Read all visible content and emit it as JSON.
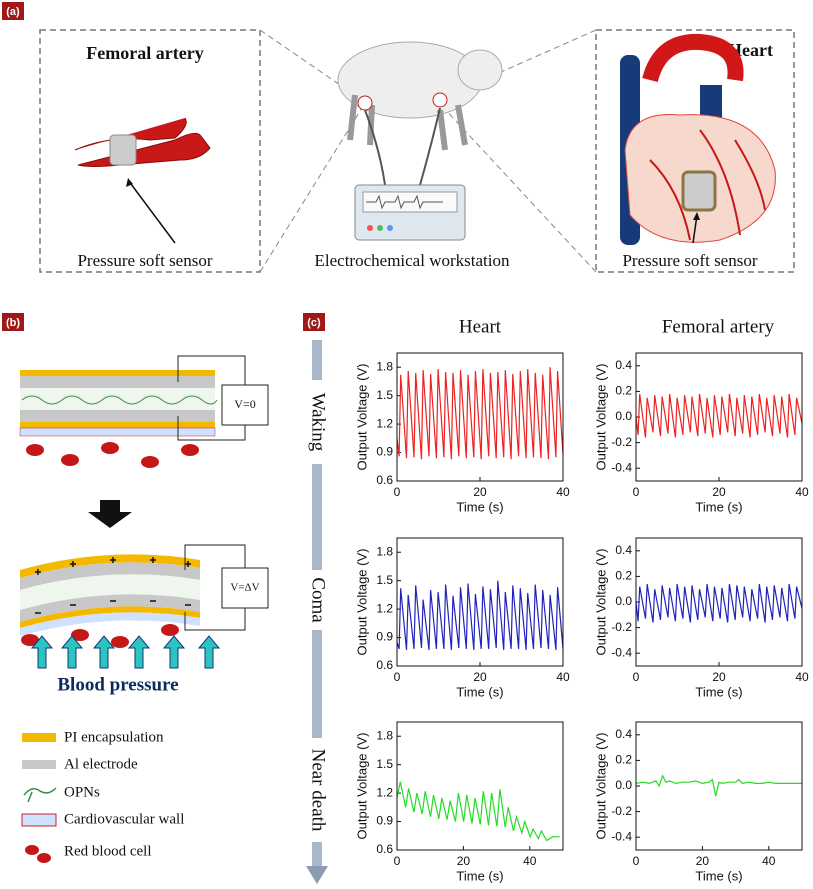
{
  "panel_labels": [
    "(a)",
    "(b)",
    "(c)"
  ],
  "panel_a": {
    "femoral_title": "Femoral artery",
    "heart_title": "Heart",
    "sensor_left": "Pressure soft sensor",
    "workstation": "Electrochemical workstation",
    "sensor_right": "Pressure soft sensor"
  },
  "panel_b": {
    "v_zero": "V=0",
    "v_delta": "V=ΔV",
    "blood_pressure": "Blood pressure",
    "legend": [
      "PI encapsulation",
      "Al electrode",
      "OPNs",
      "Cardiovascular wall",
      "Red blood cell"
    ]
  },
  "panel_c": {
    "columns": [
      "Heart",
      "Femoral artery"
    ],
    "stages": [
      "Waking",
      "Coma",
      "Near death"
    ]
  },
  "chart_data": [
    {
      "type": "line",
      "color": "#ee2222",
      "xlabel": "Time (s)",
      "ylabel": "Output Voltage (V)",
      "xlim": [
        0,
        40
      ],
      "ylim": [
        0.6,
        1.95
      ],
      "xticks": [
        0,
        20,
        40
      ],
      "yticks": [
        0.6,
        0.9,
        1.2,
        1.5,
        1.8
      ],
      "x": [
        0,
        0.5,
        0.9,
        2.3,
        2.7,
        4.1,
        4.5,
        5.9,
        6.3,
        7.7,
        8.1,
        9.5,
        9.9,
        11.3,
        11.7,
        13.1,
        13.5,
        14.9,
        15.3,
        16.7,
        17.1,
        18.5,
        18.9,
        20.3,
        20.7,
        22.1,
        22.5,
        23.9,
        24.3,
        25.7,
        26.1,
        27.5,
        27.9,
        29.3,
        29.7,
        31.1,
        31.5,
        32.9,
        33.3,
        34.7,
        35.1,
        36.5,
        36.9,
        38.3,
        38.7,
        40
      ],
      "values": [
        1.05,
        0.86,
        1.72,
        0.84,
        1.76,
        0.85,
        1.74,
        0.83,
        1.77,
        0.86,
        1.73,
        0.84,
        1.78,
        0.85,
        1.75,
        0.83,
        1.74,
        0.86,
        1.77,
        0.84,
        1.72,
        0.85,
        1.76,
        0.83,
        1.78,
        0.86,
        1.74,
        0.84,
        1.75,
        0.85,
        1.77,
        0.83,
        1.73,
        0.86,
        1.76,
        0.84,
        1.78,
        0.85,
        1.74,
        0.84,
        1.72,
        0.83,
        1.8,
        0.85,
        1.76,
        0.88
      ]
    },
    {
      "type": "line",
      "color": "#ee2222",
      "xlabel": "Time (s)",
      "ylabel": "Output Voltage (V)",
      "xlim": [
        0,
        40
      ],
      "ylim": [
        -0.5,
        0.5
      ],
      "xticks": [
        0,
        20,
        40
      ],
      "yticks": [
        -0.4,
        -0.2,
        {
          "value": 0,
          "label": "0.0"
        },
        0.2,
        0.4
      ],
      "x": [
        0,
        0.5,
        0.9,
        2.3,
        2.7,
        4.1,
        4.5,
        5.9,
        6.3,
        7.7,
        8.1,
        9.5,
        9.9,
        11.3,
        11.7,
        13.1,
        13.5,
        14.9,
        15.3,
        16.7,
        17.1,
        18.5,
        18.9,
        20.3,
        20.7,
        22.1,
        22.5,
        23.9,
        24.3,
        25.7,
        26.1,
        27.5,
        27.9,
        29.3,
        29.7,
        31.1,
        31.5,
        32.9,
        33.3,
        34.7,
        35.1,
        36.5,
        36.9,
        38.3,
        38.7,
        40
      ],
      "values": [
        0,
        -0.14,
        0.18,
        -0.16,
        0.15,
        -0.12,
        0.17,
        -0.15,
        0.16,
        -0.13,
        0.18,
        -0.16,
        0.15,
        -0.14,
        0.17,
        -0.12,
        0.16,
        -0.15,
        0.18,
        -0.13,
        0.15,
        -0.16,
        0.17,
        -0.14,
        0.16,
        -0.12,
        0.18,
        -0.15,
        0.15,
        -0.13,
        0.17,
        -0.16,
        0.16,
        -0.14,
        0.18,
        -0.12,
        0.15,
        -0.15,
        0.17,
        -0.13,
        0.16,
        -0.16,
        0.18,
        -0.14,
        0.15,
        -0.05
      ]
    },
    {
      "type": "line",
      "color": "#2222bb",
      "xlabel": "Time (s)",
      "ylabel": "Output Voltage (V)",
      "xlim": [
        0,
        40
      ],
      "ylim": [
        0.6,
        1.95
      ],
      "xticks": [
        0,
        20,
        40
      ],
      "yticks": [
        0.6,
        0.9,
        1.2,
        1.5,
        1.8
      ],
      "x": [
        0,
        0.5,
        0.9,
        2.3,
        2.7,
        4.1,
        4.5,
        5.9,
        6.3,
        7.7,
        8.1,
        9.5,
        9.9,
        11.3,
        11.7,
        13.1,
        13.5,
        14.9,
        15.3,
        16.7,
        17.1,
        18.5,
        18.9,
        20.3,
        20.7,
        22.1,
        22.5,
        23.9,
        24.3,
        25.7,
        26.1,
        27.5,
        27.9,
        29.3,
        29.7,
        31.1,
        31.5,
        32.9,
        33.3,
        34.7,
        35.1,
        36.5,
        36.9,
        38.3,
        38.7,
        40
      ],
      "values": [
        0.85,
        0.78,
        1.42,
        0.77,
        1.35,
        0.78,
        1.45,
        0.79,
        1.3,
        0.77,
        1.4,
        0.78,
        1.38,
        0.78,
        1.46,
        0.77,
        1.34,
        0.79,
        1.43,
        0.78,
        1.47,
        0.77,
        1.36,
        0.78,
        1.44,
        0.78,
        1.41,
        0.79,
        1.5,
        0.77,
        1.38,
        0.78,
        1.45,
        0.78,
        1.42,
        0.77,
        1.37,
        0.78,
        1.46,
        0.79,
        1.4,
        0.78,
        1.35,
        0.77,
        1.43,
        0.78
      ]
    },
    {
      "type": "line",
      "color": "#2222bb",
      "xlabel": "Time (s)",
      "ylabel": "Output Voltage (V)",
      "xlim": [
        0,
        40
      ],
      "ylim": [
        -0.5,
        0.5
      ],
      "xticks": [
        0,
        20,
        40
      ],
      "yticks": [
        -0.4,
        -0.2,
        {
          "value": 0,
          "label": "0.0"
        },
        0.2,
        0.4
      ],
      "x": [
        0,
        0.5,
        0.9,
        2.3,
        2.7,
        4.1,
        4.5,
        5.9,
        6.3,
        7.7,
        8.1,
        9.5,
        9.9,
        11.3,
        11.7,
        13.1,
        13.5,
        14.9,
        15.3,
        16.7,
        17.1,
        18.5,
        18.9,
        20.3,
        20.7,
        22.1,
        22.5,
        23.9,
        24.3,
        25.7,
        26.1,
        27.5,
        27.9,
        29.3,
        29.7,
        31.1,
        31.5,
        32.9,
        33.3,
        34.7,
        35.1,
        36.5,
        36.9,
        38.3,
        38.7,
        40
      ],
      "values": [
        0,
        -0.15,
        0.12,
        -0.13,
        0.14,
        -0.16,
        0.1,
        -0.14,
        0.13,
        -0.12,
        0.11,
        -0.15,
        0.14,
        -0.13,
        0.12,
        -0.16,
        0.13,
        -0.14,
        0.1,
        -0.12,
        0.14,
        -0.15,
        0.12,
        -0.13,
        0.11,
        -0.16,
        0.14,
        -0.14,
        0.13,
        -0.12,
        0.12,
        -0.15,
        0.1,
        -0.13,
        0.14,
        -0.16,
        0.12,
        -0.14,
        0.13,
        -0.12,
        0.11,
        -0.15,
        0.14,
        -0.13,
        0.12,
        -0.05
      ]
    },
    {
      "type": "line",
      "color": "#22dd22",
      "xlabel": "Time (s)",
      "ylabel": "Output Voltage (V)",
      "xlim": [
        0,
        50
      ],
      "ylim": [
        0.6,
        1.95
      ],
      "xticks": [
        0,
        20,
        40
      ],
      "yticks": [
        0.6,
        0.9,
        1.2,
        1.5,
        1.8
      ],
      "x": [
        0,
        1.0,
        2.6,
        3.5,
        5.1,
        6.0,
        7.6,
        8.5,
        10.1,
        11.0,
        12.6,
        13.5,
        15.1,
        16.0,
        17.6,
        18.5,
        20.1,
        21.0,
        22.6,
        23.5,
        25.1,
        26.0,
        27.6,
        28.5,
        30.1,
        31.0,
        32.6,
        33.5,
        35.1,
        36.0,
        37.6,
        38.5,
        40.1,
        41.0,
        42.6,
        43.5,
        45.1,
        47,
        49
      ],
      "values": [
        1.15,
        1.32,
        1.05,
        1.25,
        1.0,
        1.2,
        0.98,
        1.22,
        0.95,
        1.18,
        0.93,
        1.15,
        0.92,
        1.12,
        0.9,
        1.2,
        0.9,
        1.18,
        0.88,
        1.15,
        0.87,
        1.22,
        0.86,
        1.2,
        0.85,
        1.24,
        0.84,
        1.05,
        0.8,
        0.95,
        0.78,
        0.9,
        0.74,
        0.82,
        0.72,
        0.8,
        0.7,
        0.74,
        0.74
      ]
    },
    {
      "type": "line",
      "color": "#22dd22",
      "xlabel": "Time (s)",
      "ylabel": "Output Voltage (V)",
      "xlim": [
        0,
        50
      ],
      "ylim": [
        -0.5,
        0.5
      ],
      "xticks": [
        0,
        20,
        40
      ],
      "yticks": [
        -0.4,
        -0.2,
        {
          "value": 0,
          "label": "0.0"
        },
        0.2,
        0.4
      ],
      "x": [
        0,
        2,
        4,
        6,
        7,
        8,
        9,
        10,
        12,
        14,
        16,
        18,
        20,
        22,
        23,
        24,
        25,
        26,
        28,
        30,
        31,
        32,
        34,
        36,
        38,
        40,
        42,
        44,
        46,
        48,
        50
      ],
      "values": [
        0.02,
        0.03,
        0.02,
        0.04,
        0,
        0.08,
        0.03,
        0.04,
        0.02,
        0.03,
        0.03,
        0.04,
        0.02,
        0.03,
        0.05,
        -0.08,
        0.03,
        0.02,
        0.03,
        0.03,
        0.05,
        0.02,
        0.03,
        0.02,
        0.02,
        0.03,
        0.02,
        0.02,
        0.02,
        0.02,
        0.02
      ]
    }
  ]
}
